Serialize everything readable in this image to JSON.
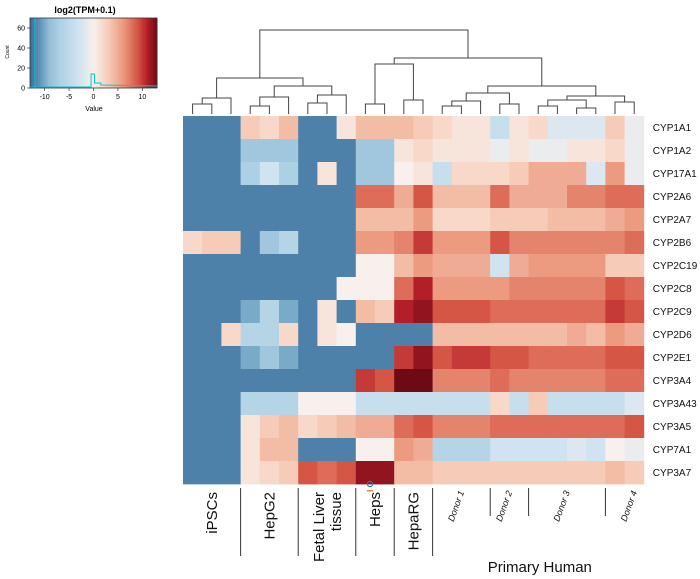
{
  "chart_data": {
    "type": "heatmap",
    "title": "",
    "color_key": {
      "title": "log2(TPM+0.1)",
      "xlabel": "Value",
      "ylabel": "Count",
      "x_ticks": [
        -10,
        -5,
        0,
        5,
        10
      ],
      "y_ticks": [
        0,
        20,
        40,
        60
      ],
      "range": [
        -13,
        13
      ],
      "colors": {
        "low": "#3f6d9c",
        "mid": "#ffffff",
        "high": "#8b1a2b",
        "histogram": "#00c8d4"
      }
    },
    "rows": [
      "CYP1A1",
      "CYP1A2",
      "CYP17A1",
      "CYP2A6",
      "CYP2A7",
      "CYP2B6",
      "CYP2C19",
      "CYP2C8",
      "CYP2C9",
      "CYP2D6",
      "CYP2E1",
      "CYP3A4",
      "CYP3A43",
      "CYP3A5",
      "CYP7A1",
      "CYP3A7"
    ],
    "groups": [
      {
        "label": "iPSCs",
        "columns": 3
      },
      {
        "label": "HepG2",
        "columns": 3
      },
      {
        "label": "Fetal Liver\ntissue",
        "columns": 3
      },
      {
        "label": "Heps",
        "columns": 2
      },
      {
        "label": "HepaRG",
        "columns": 2
      },
      {
        "label": "Primary Human\nHepatocytes",
        "columns": 12
      }
    ],
    "donor_labels": [
      {
        "label": "Donor 1",
        "columns": 3
      },
      {
        "label": "Donor 2",
        "columns": 2
      },
      {
        "label": "Donor 3",
        "columns": 4
      },
      {
        "label": "Donor 4",
        "columns": 3
      }
    ],
    "values": [
      [
        -12,
        -12,
        -12,
        3,
        2,
        4,
        -12,
        -12,
        1,
        4,
        4,
        4,
        3,
        2,
        1,
        1,
        -4,
        1,
        2,
        -2,
        -2,
        -2,
        3,
        -1
      ],
      [
        -12,
        -12,
        -12,
        -8,
        -8,
        -8,
        -12,
        -12,
        -12,
        -8,
        -8,
        1,
        2,
        1,
        1,
        1,
        -1,
        1,
        -1,
        -1,
        1,
        1,
        2,
        -1
      ],
      [
        -12,
        -12,
        -12,
        -7,
        -3,
        -7,
        -12,
        1,
        -12,
        -8,
        -8,
        0,
        1,
        -4,
        2,
        2,
        2,
        3,
        5,
        5,
        5,
        -2,
        6,
        -1
      ],
      [
        -12,
        -12,
        -12,
        -12,
        -12,
        -12,
        -12,
        -12,
        -12,
        8,
        8,
        5,
        9,
        4,
        4,
        4,
        8,
        5,
        5,
        5,
        7,
        7,
        8,
        8
      ],
      [
        -12,
        -12,
        -12,
        -12,
        -12,
        -12,
        -12,
        -12,
        -12,
        4,
        4,
        4,
        6,
        2,
        2,
        2,
        3,
        3,
        3,
        4,
        4,
        4,
        5,
        6
      ],
      [
        2,
        3,
        3,
        -12,
        -8,
        -6,
        -12,
        -12,
        -12,
        6,
        6,
        7,
        10,
        6,
        6,
        6,
        9,
        7,
        7,
        7,
        7,
        7,
        7,
        8
      ],
      [
        -12,
        -12,
        -12,
        -12,
        -12,
        -12,
        -12,
        -12,
        -12,
        0,
        0,
        4,
        6,
        5,
        5,
        5,
        -3,
        5,
        6,
        6,
        6,
        6,
        3,
        3
      ],
      [
        -12,
        -12,
        -12,
        -12,
        -12,
        -12,
        -12,
        -12,
        0,
        0,
        0,
        8,
        11,
        6,
        6,
        6,
        6,
        7,
        7,
        7,
        7,
        7,
        9,
        8
      ],
      [
        -12,
        -12,
        -12,
        -10,
        -6,
        -10,
        -12,
        1,
        -12,
        4,
        3,
        11,
        12,
        9,
        9,
        9,
        8,
        8,
        8,
        8,
        8,
        8,
        10,
        9
      ],
      [
        -12,
        -12,
        2,
        -6,
        -6,
        2,
        -12,
        1,
        0,
        -12,
        -12,
        -12,
        -12,
        4,
        4,
        4,
        4,
        4,
        4,
        4,
        5,
        4,
        6,
        5
      ],
      [
        -12,
        -12,
        -12,
        -10,
        -8,
        -10,
        -12,
        -12,
        -12,
        -12,
        -12,
        10,
        12,
        9,
        10,
        10,
        9,
        9,
        8,
        8,
        8,
        8,
        9,
        9
      ],
      [
        -12,
        -12,
        -12,
        -12,
        -12,
        -12,
        -12,
        -12,
        -12,
        10,
        9,
        13,
        13,
        7,
        7,
        7,
        8,
        7,
        7,
        7,
        7,
        7,
        8,
        8
      ],
      [
        -12,
        -12,
        -12,
        -6,
        -6,
        -6,
        0,
        0,
        0,
        -4,
        -4,
        -4,
        -4,
        -4,
        -4,
        -4,
        2,
        -4,
        3,
        -4,
        -4,
        -4,
        -4,
        -2
      ],
      [
        -12,
        -12,
        -12,
        1,
        3,
        4,
        2,
        3,
        4,
        5,
        5,
        8,
        9,
        7,
        7,
        7,
        8,
        8,
        8,
        8,
        8,
        8,
        8,
        9
      ],
      [
        -12,
        -12,
        -12,
        1,
        4,
        4,
        -12,
        -12,
        -12,
        0,
        0,
        6,
        5,
        -6,
        -6,
        -6,
        -3,
        -3,
        -3,
        -3,
        -2,
        -3,
        0,
        -1
      ],
      [
        -12,
        -12,
        -12,
        1,
        2,
        3,
        9,
        8,
        9,
        12,
        12,
        4,
        4,
        3,
        3,
        3,
        3,
        3,
        3,
        3,
        3,
        3,
        4,
        3
      ]
    ]
  }
}
